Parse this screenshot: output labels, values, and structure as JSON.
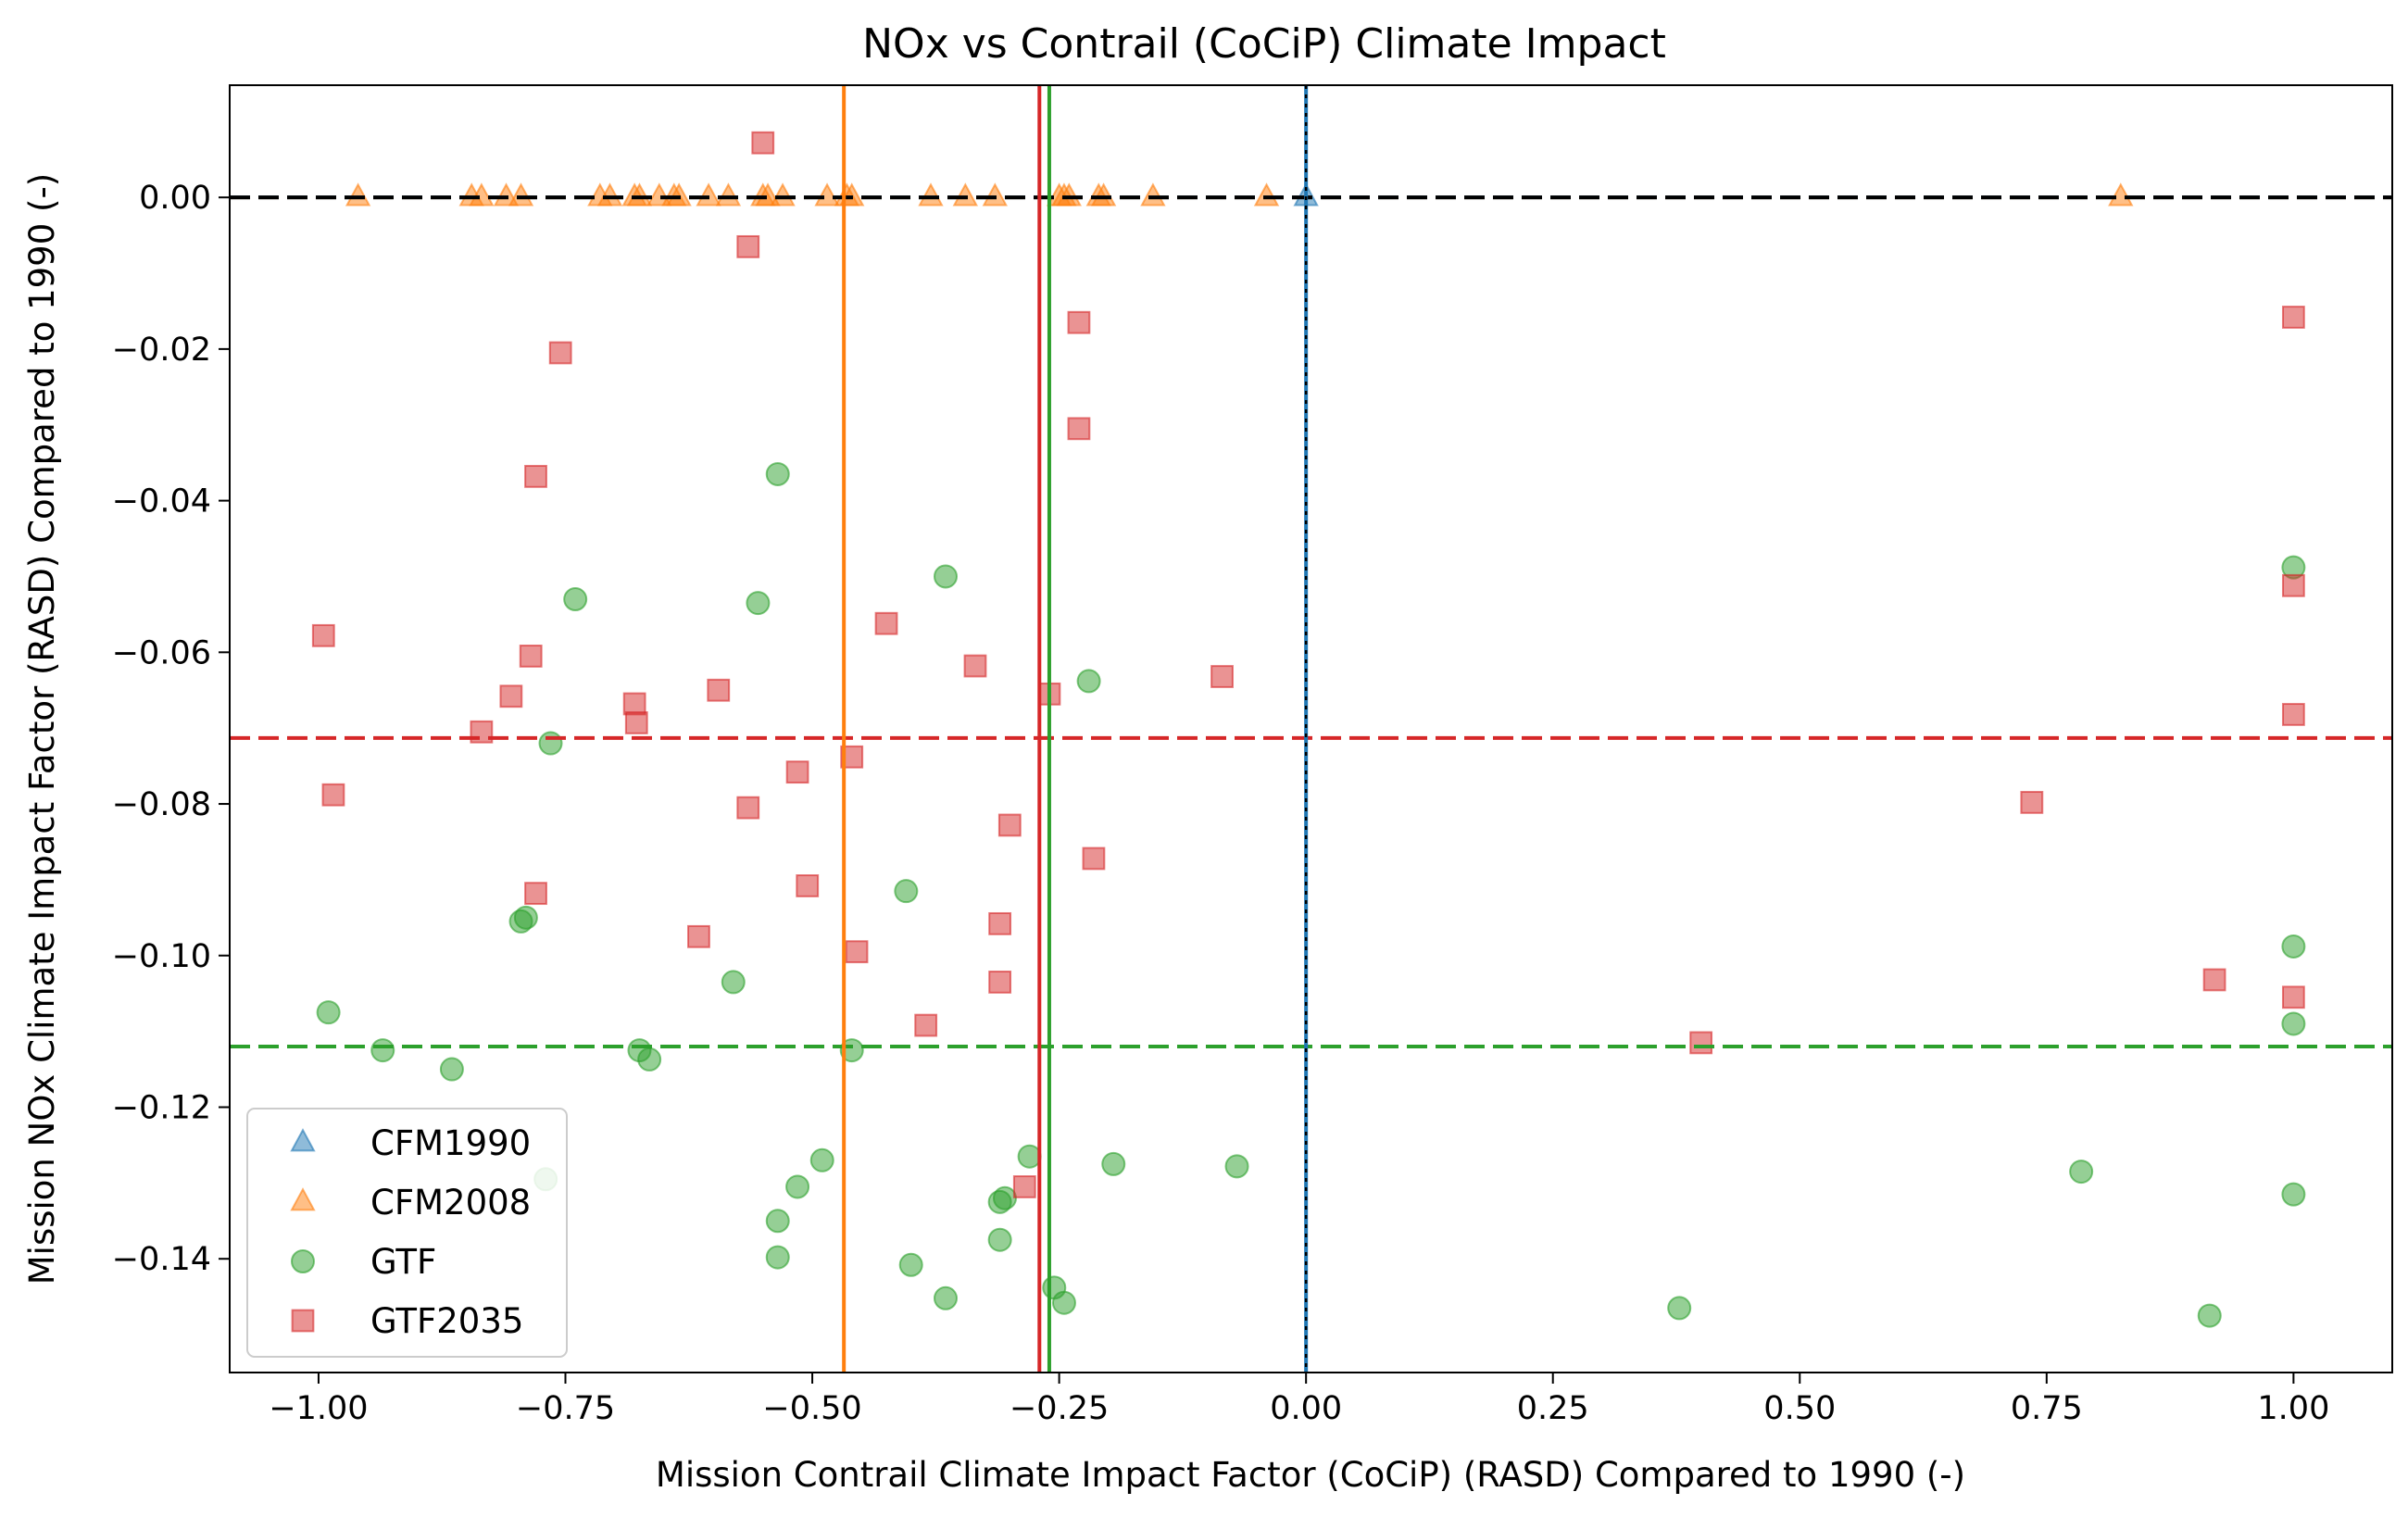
{
  "chart_data": {
    "type": "scatter",
    "title": "NOx vs Contrail (CoCiP) Climate Impact",
    "xlabel": "Mission Contrail Climate Impact Factor (CoCiP) (RASD) Compared to 1990 (-)",
    "ylabel": "Mission NOx Climate Impact Factor (RASD) Compared to 1990 (-)",
    "xlim": [
      -1.09,
      1.1
    ],
    "ylim": [
      -0.155,
      0.0148
    ],
    "xticks": [
      -1.0,
      -0.75,
      -0.5,
      -0.25,
      0.0,
      0.25,
      0.5,
      0.75,
      1.0
    ],
    "xtick_labels": [
      "−1.00",
      "−0.75",
      "−0.50",
      "−0.25",
      "0.00",
      "0.25",
      "0.50",
      "0.75",
      "1.00"
    ],
    "yticks": [
      0.0,
      -0.02,
      -0.04,
      -0.06,
      -0.08,
      -0.1,
      -0.12,
      -0.14
    ],
    "ytick_labels": [
      "0.00",
      "−0.02",
      "−0.04",
      "−0.06",
      "−0.08",
      "−0.10",
      "−0.12",
      "−0.14"
    ],
    "grid": false,
    "legend_position": "lower-left",
    "series": [
      {
        "name": "CFM1990",
        "marker": "triangle",
        "color": "#1f77b4",
        "points": [
          [
            0.0,
            0.0
          ]
        ]
      },
      {
        "name": "CFM2008",
        "marker": "triangle",
        "color": "#ff7f0e",
        "points": [
          [
            -0.96,
            0.0
          ],
          [
            -0.845,
            0.0
          ],
          [
            -0.835,
            0.0
          ],
          [
            -0.81,
            0.0
          ],
          [
            -0.795,
            0.0
          ],
          [
            -0.715,
            0.0
          ],
          [
            -0.705,
            0.0
          ],
          [
            -0.68,
            0.0
          ],
          [
            -0.675,
            0.0
          ],
          [
            -0.655,
            0.0
          ],
          [
            -0.64,
            0.0
          ],
          [
            -0.635,
            0.0
          ],
          [
            -0.605,
            0.0
          ],
          [
            -0.585,
            0.0
          ],
          [
            -0.55,
            0.0
          ],
          [
            -0.545,
            0.0
          ],
          [
            -0.53,
            0.0
          ],
          [
            -0.485,
            0.0
          ],
          [
            -0.465,
            0.0
          ],
          [
            -0.46,
            0.0
          ],
          [
            -0.38,
            0.0
          ],
          [
            -0.345,
            0.0
          ],
          [
            -0.315,
            0.0
          ],
          [
            -0.25,
            0.0
          ],
          [
            -0.245,
            0.0
          ],
          [
            -0.24,
            0.0
          ],
          [
            -0.21,
            0.0
          ],
          [
            -0.205,
            0.0
          ],
          [
            -0.155,
            0.0
          ],
          [
            -0.04,
            0.0
          ],
          [
            0.825,
            0.0
          ]
        ]
      },
      {
        "name": "GTF",
        "marker": "circle",
        "color": "#2ca02c",
        "points": [
          [
            -0.535,
            -0.0365
          ],
          [
            -0.365,
            -0.05
          ],
          [
            -0.74,
            -0.053
          ],
          [
            -0.555,
            -0.0535
          ],
          [
            -0.22,
            -0.0638
          ],
          [
            -0.765,
            -0.072
          ],
          [
            -0.405,
            -0.0915
          ],
          [
            -0.795,
            -0.0955
          ],
          [
            -0.79,
            -0.095
          ],
          [
            -0.58,
            -0.1035
          ],
          [
            -0.99,
            -0.1075
          ],
          [
            -0.935,
            -0.1125
          ],
          [
            -0.675,
            -0.1125
          ],
          [
            -0.665,
            -0.1137
          ],
          [
            -0.46,
            -0.1125
          ],
          [
            -0.865,
            -0.115
          ],
          [
            -0.28,
            -0.1265
          ],
          [
            -0.49,
            -0.127
          ],
          [
            -0.195,
            -0.1275
          ],
          [
            -0.07,
            -0.1278
          ],
          [
            -0.515,
            -0.1305
          ],
          [
            -0.305,
            -0.132
          ],
          [
            -0.31,
            -0.1325
          ],
          [
            -0.535,
            -0.135
          ],
          [
            -0.31,
            -0.1375
          ],
          [
            -0.535,
            -0.1398
          ],
          [
            -0.4,
            -0.1408
          ],
          [
            -0.365,
            -0.1452
          ],
          [
            -0.255,
            -0.1438
          ],
          [
            -0.245,
            -0.1458
          ],
          [
            0.378,
            -0.1465
          ],
          [
            0.785,
            -0.1285
          ],
          [
            0.915,
            -0.1475
          ],
          [
            1.0,
            -0.0488
          ],
          [
            1.0,
            -0.0988
          ],
          [
            1.0,
            -0.109
          ],
          [
            1.0,
            -0.1315
          ],
          [
            -0.77,
            -0.1295
          ]
        ]
      },
      {
        "name": "GTF2035",
        "marker": "square",
        "color": "#d62728",
        "points": [
          [
            -0.55,
            0.0072
          ],
          [
            -0.565,
            -0.0065
          ],
          [
            -0.755,
            -0.0205
          ],
          [
            -0.78,
            -0.0368
          ],
          [
            -0.995,
            -0.0578
          ],
          [
            -0.785,
            -0.0605
          ],
          [
            -0.805,
            -0.0658
          ],
          [
            -0.835,
            -0.0705
          ],
          [
            -0.68,
            -0.0668
          ],
          [
            -0.678,
            -0.0693
          ],
          [
            -0.595,
            -0.065
          ],
          [
            -0.565,
            -0.0805
          ],
          [
            -0.985,
            -0.0788
          ],
          [
            -0.78,
            -0.0918
          ],
          [
            -0.615,
            -0.0975
          ],
          [
            -0.515,
            -0.0758
          ],
          [
            -0.46,
            -0.0738
          ],
          [
            -0.505,
            -0.0908
          ],
          [
            -0.455,
            -0.0995
          ],
          [
            -0.385,
            -0.1092
          ],
          [
            -0.425,
            -0.0562
          ],
          [
            -0.335,
            -0.0618
          ],
          [
            -0.3,
            -0.0828
          ],
          [
            -0.31,
            -0.0958
          ],
          [
            -0.31,
            -0.1035
          ],
          [
            -0.285,
            -0.1305
          ],
          [
            -0.26,
            -0.0655
          ],
          [
            -0.23,
            -0.0165
          ],
          [
            -0.23,
            -0.0305
          ],
          [
            -0.215,
            -0.0872
          ],
          [
            -0.085,
            -0.0632
          ],
          [
            0.4,
            -0.1115
          ],
          [
            0.735,
            -0.0798
          ],
          [
            0.92,
            -0.1032
          ],
          [
            1.0,
            -0.0158
          ],
          [
            1.0,
            -0.0512
          ],
          [
            1.0,
            -0.0682
          ],
          [
            1.0,
            -0.1055
          ]
        ]
      }
    ],
    "reference_lines": [
      {
        "orientation": "horizontal",
        "value": 0.0,
        "style": "dashed",
        "color": "#ff7f0e"
      },
      {
        "orientation": "horizontal",
        "value": 0.0,
        "style": "dashed",
        "color": "#1f77b4"
      },
      {
        "orientation": "horizontal",
        "value": 0.0,
        "style": "dashed",
        "color": "#000000"
      },
      {
        "orientation": "horizontal",
        "value": -0.0713,
        "style": "dashed",
        "color": "#d62728"
      },
      {
        "orientation": "horizontal",
        "value": -0.112,
        "style": "dashed",
        "color": "#2ca02c"
      },
      {
        "orientation": "vertical",
        "value": -0.468,
        "style": "solid",
        "color": "#ff7f0e"
      },
      {
        "orientation": "vertical",
        "value": -0.27,
        "style": "solid",
        "color": "#d62728"
      },
      {
        "orientation": "vertical",
        "value": -0.26,
        "style": "solid",
        "color": "#2ca02c"
      },
      {
        "orientation": "vertical",
        "value": 0.0,
        "style": "solid",
        "color": "#1f77b4"
      },
      {
        "orientation": "vertical",
        "value": 0.0,
        "style": "dotted",
        "color": "#000000"
      }
    ]
  }
}
